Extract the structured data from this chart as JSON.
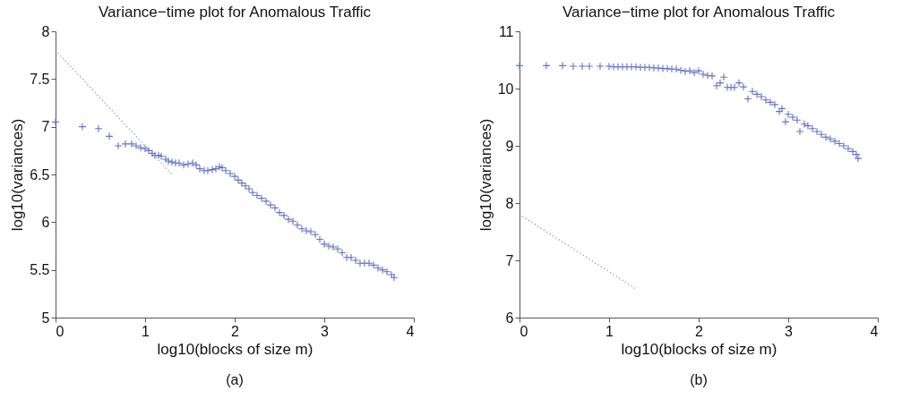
{
  "chart_data": [
    {
      "type": "scatter",
      "title": "Variance−time plot for Anomalous Traffic",
      "xlabel": "log10(blocks of size m)",
      "ylabel": "log10(variances)",
      "annotations": [
        "(a)"
      ],
      "xlim": [
        0,
        4
      ],
      "xticks": [
        0,
        1,
        2,
        3,
        4
      ],
      "ylim": [
        5,
        8
      ],
      "yticks": [
        5,
        5.5,
        6,
        6.5,
        7,
        7.5,
        8
      ],
      "grid": false,
      "marker": "cross",
      "series": [
        {
          "color": "#6373c4",
          "x": [
            0,
            0.3,
            0.48,
            0.6,
            0.7,
            0.78,
            0.85,
            0.9,
            0.95,
            1.0,
            1.04,
            1.08,
            1.11,
            1.15,
            1.18,
            1.23,
            1.26,
            1.3,
            1.34,
            1.38,
            1.43,
            1.48,
            1.53,
            1.57,
            1.61,
            1.66,
            1.7,
            1.75,
            1.79,
            1.83,
            1.86,
            1.9,
            1.95,
            2.0,
            2.04,
            2.08,
            2.12,
            2.16,
            2.2,
            2.25,
            2.3,
            2.35,
            2.4,
            2.45,
            2.5,
            2.55,
            2.6,
            2.65,
            2.7,
            2.75,
            2.8,
            2.85,
            2.9,
            2.95,
            3.0,
            3.05,
            3.1,
            3.15,
            3.2,
            3.25,
            3.3,
            3.35,
            3.4,
            3.45,
            3.5,
            3.55,
            3.6,
            3.65,
            3.7,
            3.75,
            3.78
          ],
          "values": [
            7.05,
            7.0,
            6.98,
            6.9,
            6.8,
            6.82,
            6.82,
            6.8,
            6.78,
            6.77,
            6.75,
            6.72,
            6.7,
            6.7,
            6.69,
            6.66,
            6.64,
            6.63,
            6.62,
            6.62,
            6.6,
            6.61,
            6.62,
            6.6,
            6.56,
            6.54,
            6.54,
            6.55,
            6.56,
            6.58,
            6.57,
            6.54,
            6.51,
            6.48,
            6.44,
            6.41,
            6.38,
            6.35,
            6.31,
            6.28,
            6.25,
            6.22,
            6.18,
            6.15,
            6.1,
            6.07,
            6.03,
            6.01,
            5.97,
            5.93,
            5.91,
            5.9,
            5.87,
            5.82,
            5.77,
            5.75,
            5.74,
            5.72,
            5.68,
            5.63,
            5.63,
            5.6,
            5.57,
            5.57,
            5.57,
            5.55,
            5.52,
            5.5,
            5.48,
            5.45,
            5.42
          ]
        },
        {
          "type": "line",
          "marker": "none",
          "color": "#6373c4",
          "line_style": "dotted",
          "x": [
            0,
            1.3
          ],
          "values": [
            7.8,
            6.5
          ]
        }
      ]
    },
    {
      "type": "scatter",
      "title": "Variance−time plot for Anomalous Traffic",
      "xlabel": "log10(blocks of size m)",
      "ylabel": "log10(variances)",
      "annotations": [
        "(b)"
      ],
      "xlim": [
        0,
        4
      ],
      "xticks": [
        0,
        1,
        2,
        3,
        4
      ],
      "ylim": [
        6,
        11
      ],
      "yticks": [
        6,
        7,
        8,
        9,
        10,
        11
      ],
      "grid": false,
      "marker": "cross",
      "series": [
        {
          "color": "#6373c4",
          "x": [
            0,
            0.3,
            0.48,
            0.6,
            0.7,
            0.78,
            0.9,
            1.0,
            1.05,
            1.1,
            1.15,
            1.2,
            1.25,
            1.3,
            1.35,
            1.4,
            1.45,
            1.5,
            1.55,
            1.6,
            1.65,
            1.7,
            1.75,
            1.8,
            1.85,
            1.9,
            1.95,
            2.0,
            2.05,
            2.1,
            2.15,
            2.2,
            2.24,
            2.28,
            2.32,
            2.36,
            2.4,
            2.45,
            2.5,
            2.55,
            2.6,
            2.65,
            2.7,
            2.75,
            2.8,
            2.85,
            2.9,
            2.93,
            2.97,
            3.0,
            3.05,
            3.1,
            3.13,
            3.18,
            3.22,
            3.27,
            3.32,
            3.37,
            3.42,
            3.47,
            3.52,
            3.57,
            3.62,
            3.67,
            3.72,
            3.76,
            3.78
          ],
          "values": [
            10.4,
            10.4,
            10.4,
            10.39,
            10.39,
            10.39,
            10.39,
            10.39,
            10.38,
            10.38,
            10.38,
            10.38,
            10.38,
            10.38,
            10.37,
            10.37,
            10.37,
            10.36,
            10.36,
            10.35,
            10.35,
            10.34,
            10.34,
            10.32,
            10.3,
            10.31,
            10.28,
            10.31,
            10.25,
            10.23,
            10.22,
            10.05,
            10.1,
            10.2,
            10.02,
            10.02,
            10.02,
            10.1,
            10.03,
            9.82,
            9.95,
            9.9,
            9.86,
            9.8,
            9.76,
            9.72,
            9.6,
            9.65,
            9.42,
            9.55,
            9.5,
            9.45,
            9.25,
            9.38,
            9.35,
            9.3,
            9.25,
            9.2,
            9.15,
            9.12,
            9.08,
            9.04,
            9.0,
            8.95,
            8.9,
            8.85,
            8.78
          ]
        },
        {
          "type": "line",
          "marker": "none",
          "color": "#6373c4",
          "line_style": "dotted",
          "x": [
            0,
            1.3
          ],
          "values": [
            7.8,
            6.5
          ]
        }
      ]
    }
  ]
}
